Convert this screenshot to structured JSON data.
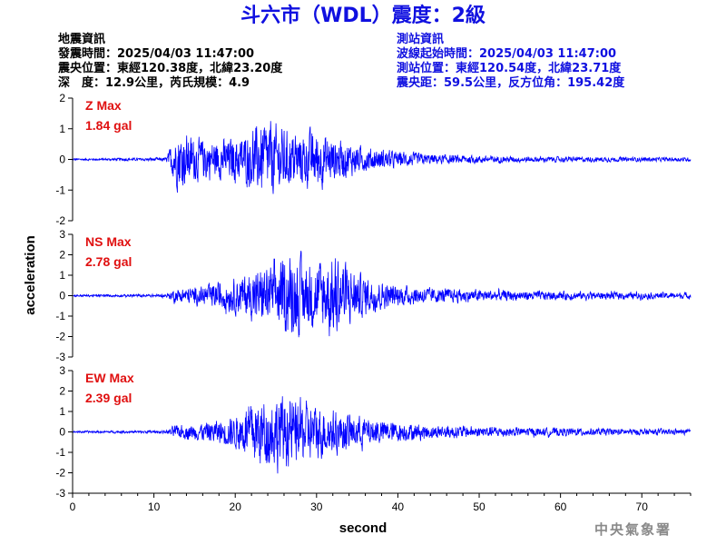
{
  "title": "斗六市（WDL）震度：2級",
  "event_info": {
    "heading": "地震資訊",
    "origin_time": "發震時間：2025/04/03 11:47:00",
    "epicenter": "震央位置：東經120.38度，北緯23.20度",
    "depth_magnitude": "深　度：12.9公里，芮氏規模：4.9"
  },
  "station_info": {
    "heading": "測站資訊",
    "waveform_start": "波線起始時間：2025/04/03 11:47:00",
    "location": "測站位置：東經120.54度，北緯23.71度",
    "distance_azimuth": "震央距：59.5公里，反方位角：195.42度"
  },
  "footer": {
    "agency": "中央氣象署"
  },
  "colors": {
    "trace": "#0000ff",
    "title": "#1010e0",
    "max_label": "#e01010",
    "axis": "#000000"
  },
  "chart_data": {
    "type": "line",
    "xlabel": "second",
    "ylabel": "acceleration",
    "xlim": [
      0,
      76
    ],
    "x_ticks": [
      0,
      10,
      20,
      30,
      40,
      50,
      60,
      70
    ],
    "grid": false,
    "panels": [
      {
        "component": "Z",
        "max_label": "Z Max",
        "max_value": "1.84 gal",
        "ylim": [
          -2,
          2
        ],
        "y_ticks": [
          -2,
          -1,
          0,
          1,
          2
        ],
        "envelope": [
          {
            "t": 0,
            "a": 0.04
          },
          {
            "t": 8,
            "a": 0.06
          },
          {
            "t": 11.5,
            "a": 0.08
          },
          {
            "t": 12.5,
            "a": 0.9
          },
          {
            "t": 13,
            "a": 1.25
          },
          {
            "t": 15,
            "a": 0.9
          },
          {
            "t": 18,
            "a": 0.8
          },
          {
            "t": 21,
            "a": 1.0
          },
          {
            "t": 24,
            "a": 1.6
          },
          {
            "t": 27,
            "a": 1.1
          },
          {
            "t": 30,
            "a": 1.2
          },
          {
            "t": 33,
            "a": 0.8
          },
          {
            "t": 36,
            "a": 0.5
          },
          {
            "t": 40,
            "a": 0.32
          },
          {
            "t": 45,
            "a": 0.2
          },
          {
            "t": 55,
            "a": 0.12
          },
          {
            "t": 76,
            "a": 0.08
          }
        ]
      },
      {
        "component": "NS",
        "max_label": "NS Max",
        "max_value": "2.78 gal",
        "ylim": [
          -3,
          3
        ],
        "y_ticks": [
          -3,
          -2,
          -1,
          0,
          1,
          2,
          3
        ],
        "envelope": [
          {
            "t": 0,
            "a": 0.06
          },
          {
            "t": 11.5,
            "a": 0.1
          },
          {
            "t": 12.5,
            "a": 0.4
          },
          {
            "t": 16,
            "a": 0.6
          },
          {
            "t": 20,
            "a": 1.1
          },
          {
            "t": 24,
            "a": 1.8
          },
          {
            "t": 27,
            "a": 2.5
          },
          {
            "t": 30,
            "a": 2.0
          },
          {
            "t": 32.5,
            "a": 2.6
          },
          {
            "t": 35,
            "a": 1.4
          },
          {
            "t": 39,
            "a": 0.7
          },
          {
            "t": 45,
            "a": 0.45
          },
          {
            "t": 55,
            "a": 0.3
          },
          {
            "t": 76,
            "a": 0.18
          }
        ]
      },
      {
        "component": "EW",
        "max_label": "EW Max",
        "max_value": "2.39 gal",
        "ylim": [
          -3,
          3
        ],
        "y_ticks": [
          -3,
          -2,
          -1,
          0,
          1,
          2,
          3
        ],
        "envelope": [
          {
            "t": 0,
            "a": 0.06
          },
          {
            "t": 11.5,
            "a": 0.1
          },
          {
            "t": 12.5,
            "a": 0.4
          },
          {
            "t": 16,
            "a": 0.55
          },
          {
            "t": 20,
            "a": 1.0
          },
          {
            "t": 22.5,
            "a": 2.1
          },
          {
            "t": 25,
            "a": 2.3
          },
          {
            "t": 28,
            "a": 2.0
          },
          {
            "t": 31,
            "a": 1.5
          },
          {
            "t": 35,
            "a": 1.0
          },
          {
            "t": 40,
            "a": 0.6
          },
          {
            "t": 45,
            "a": 0.42
          },
          {
            "t": 55,
            "a": 0.28
          },
          {
            "t": 76,
            "a": 0.16
          }
        ]
      }
    ]
  }
}
